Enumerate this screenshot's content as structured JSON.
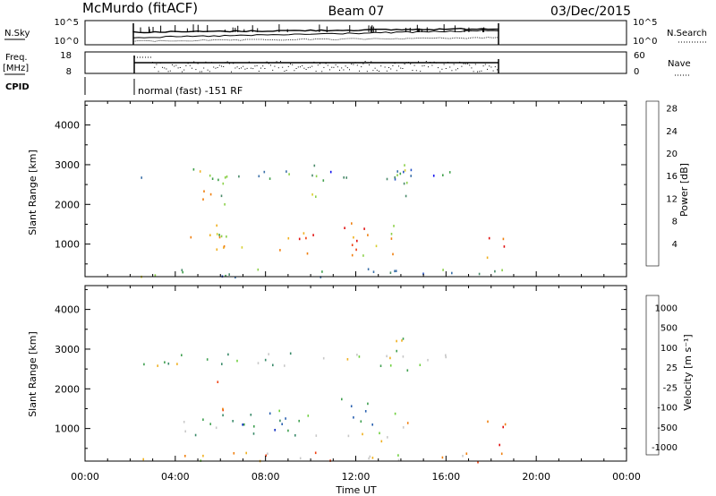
{
  "header": {
    "station": "McMurdo (fitACF)",
    "beam": "Beam 07",
    "date": "03/Dec/2015"
  },
  "top_panels": {
    "nsky_label": "N.Sky",
    "nsky_ticks": [
      "10^5",
      "10^0"
    ],
    "nsearch_label": "N.Search",
    "nsearch_ticks": [
      "10^5",
      "10^0"
    ],
    "freq_label_1": "Freq.",
    "freq_label_2": "[MHz]",
    "freq_ticks": [
      "18",
      "8"
    ],
    "nave_label": "Nave",
    "nave_ticks": [
      "60",
      "0"
    ],
    "cpid_label": "CPID",
    "cpid_text": "normal (fast) -151 RF"
  },
  "chart_data": [
    {
      "type": "heatmap",
      "name": "power",
      "ylabel": "Slant Range [km]",
      "xlabel": "Time UT",
      "y_ticks": [
        "1000",
        "2000",
        "3000",
        "4000"
      ],
      "y_tick_values": [
        1000,
        2000,
        3000,
        4000
      ],
      "ylim": [
        180,
        4600
      ],
      "xlim": [
        0,
        24
      ],
      "colorbar": {
        "label": "Power [dB]",
        "ticks": [
          "4",
          "8",
          "12",
          "16",
          "20",
          "24",
          "28"
        ],
        "colors": [
          "#1010ee",
          "#2855c8",
          "#3a6fa8",
          "#4a8a6a",
          "#3fa04a",
          "#8cd04a",
          "#d8d030",
          "#f0b020",
          "#f08010",
          "#f04010",
          "#e01010"
        ]
      },
      "echo_regions": [
        {
          "t": [
            2.4,
            16.2
          ],
          "r": [
            2600,
            2950
          ],
          "level": 0.3
        },
        {
          "t": [
            4.3,
            6.2
          ],
          "r": [
            800,
            1500
          ],
          "level": 0.7
        },
        {
          "t": [
            5.8,
            7.2
          ],
          "r": [
            700,
            1300
          ],
          "level": 0.6
        },
        {
          "t": [
            8.6,
            10.4
          ],
          "r": [
            700,
            1400
          ],
          "level": 0.75
        },
        {
          "t": [
            11.3,
            12.8
          ],
          "r": [
            1000,
            1800
          ],
          "level": 0.8
        },
        {
          "t": [
            11.6,
            13.4
          ],
          "r": [
            700,
            1100
          ],
          "level": 0.65
        },
        {
          "t": [
            13.3,
            14.3
          ],
          "r": [
            700,
            1500
          ],
          "level": 0.6
        },
        {
          "t": [
            13.5,
            14.4
          ],
          "r": [
            2200,
            3500
          ],
          "level": 0.5
        },
        {
          "t": [
            4.6,
            6.2
          ],
          "r": [
            2000,
            2900
          ],
          "level": 0.55
        },
        {
          "t": [
            9.6,
            10.4
          ],
          "r": [
            2200,
            3100
          ],
          "level": 0.45
        },
        {
          "t": [
            17.6,
            18.6
          ],
          "r": [
            600,
            1300
          ],
          "level": 0.85
        },
        {
          "t": [
            2.4,
            18.6
          ],
          "r": [
            180,
            420
          ],
          "level": 0.35
        }
      ]
    },
    {
      "type": "heatmap",
      "name": "velocity",
      "ylabel": "Slant Range [km]",
      "xlabel": "Time UT",
      "y_ticks": [
        "1000",
        "2000",
        "3000",
        "4000"
      ],
      "y_tick_values": [
        1000,
        2000,
        3000,
        4000
      ],
      "ylim": [
        180,
        4600
      ],
      "xlim": [
        0,
        24
      ],
      "x_ticks": [
        "00:00",
        "04:00",
        "08:00",
        "12:00",
        "16:00",
        "20:00",
        "00:00"
      ],
      "x_tick_values": [
        0,
        4,
        8,
        12,
        16,
        20,
        24
      ],
      "colorbar": {
        "label": "Velocity [m s⁻¹]",
        "ticks": [
          "1000",
          "500",
          "100",
          "25",
          "-25",
          "-100",
          "-500",
          "-1000"
        ],
        "colors": [
          "#1030c0",
          "#2a60b0",
          "#3a8a6a",
          "#3fa050",
          "#70d040",
          "#c8c8c8",
          "#f0b020",
          "#f08010",
          "#f04010",
          "#e01010"
        ]
      },
      "echo_regions": [
        {
          "t": [
            2.4,
            16.2
          ],
          "r": [
            2600,
            2950
          ],
          "level": 0.45
        },
        {
          "t": [
            4.3,
            6.2
          ],
          "r": [
            800,
            1500
          ],
          "level": 0.35
        },
        {
          "t": [
            6.2,
            8.8
          ],
          "r": [
            800,
            1500
          ],
          "level": 0.2
        },
        {
          "t": [
            8.6,
            10.4
          ],
          "r": [
            700,
            1400
          ],
          "level": 0.3
        },
        {
          "t": [
            11.3,
            12.8
          ],
          "r": [
            1000,
            1800
          ],
          "level": 0.35
        },
        {
          "t": [
            11.6,
            13.4
          ],
          "r": [
            700,
            1100
          ],
          "level": 0.65
        },
        {
          "t": [
            13.3,
            14.3
          ],
          "r": [
            700,
            1500
          ],
          "level": 0.6
        },
        {
          "t": [
            13.5,
            14.4
          ],
          "r": [
            2200,
            3500
          ],
          "level": 0.5
        },
        {
          "t": [
            5.6,
            6.2
          ],
          "r": [
            1400,
            2300
          ],
          "level": 0.75
        },
        {
          "t": [
            17.6,
            18.6
          ],
          "r": [
            600,
            1300
          ],
          "level": 0.8
        },
        {
          "t": [
            2.4,
            18.6
          ],
          "r": [
            180,
            420
          ],
          "level": 0.62
        }
      ]
    }
  ]
}
